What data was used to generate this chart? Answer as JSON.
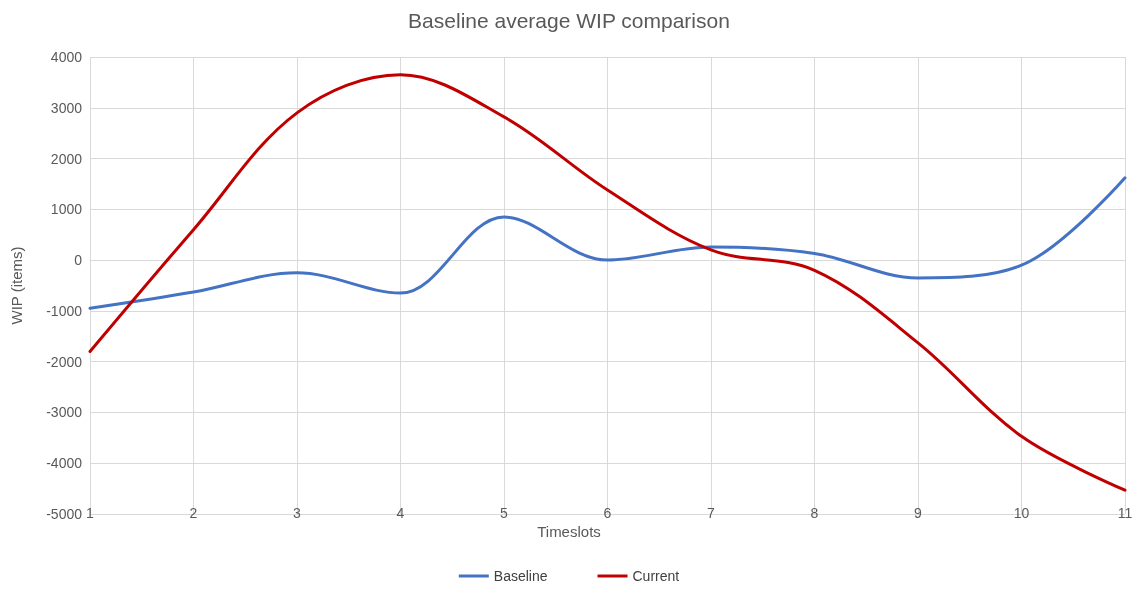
{
  "chart_data": {
    "type": "line",
    "title": "Baseline average WIP comparison",
    "xlabel": "Timeslots",
    "ylabel": "WIP (items)",
    "categories": [
      "1",
      "2",
      "3",
      "4",
      "5",
      "6",
      "7",
      "8",
      "9",
      "10",
      "11"
    ],
    "series": [
      {
        "name": "Baseline",
        "color": "#4472c4",
        "values": [
          -950,
          -630,
          -250,
          -650,
          850,
          0,
          260,
          130,
          -350,
          -100,
          1620
        ]
      },
      {
        "name": "Current",
        "color": "#c00000",
        "values": [
          -1800,
          600,
          2900,
          3650,
          2820,
          1380,
          200,
          -200,
          -1630,
          -3470,
          -4530
        ]
      }
    ],
    "ylim": [
      -5000,
      4000
    ],
    "yticks": [
      -5000,
      -4000,
      -3000,
      -2000,
      -1000,
      0,
      1000,
      2000,
      3000,
      4000
    ],
    "grid": true,
    "legend": "bottom",
    "marker": "none",
    "line_style": "solid"
  }
}
